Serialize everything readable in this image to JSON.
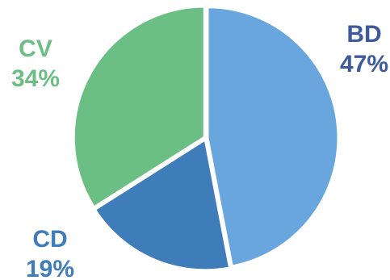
{
  "chart_data": {
    "type": "pie",
    "title": "",
    "slices": [
      {
        "name": "BD",
        "value": 47,
        "label": "47%",
        "color": "#69A6DD"
      },
      {
        "name": "CD",
        "value": 19,
        "label": "19%",
        "color": "#3E7DBA"
      },
      {
        "name": "CV",
        "value": 34,
        "label": "34%",
        "color": "#6CBF84"
      }
    ],
    "label_colors": {
      "BD": "#3F5A9C",
      "CD": "#3E7DBA",
      "CV": "#6CBF84"
    },
    "start_angle_deg": 0,
    "direction": "clockwise",
    "legend": "none",
    "labels_outside": true
  }
}
